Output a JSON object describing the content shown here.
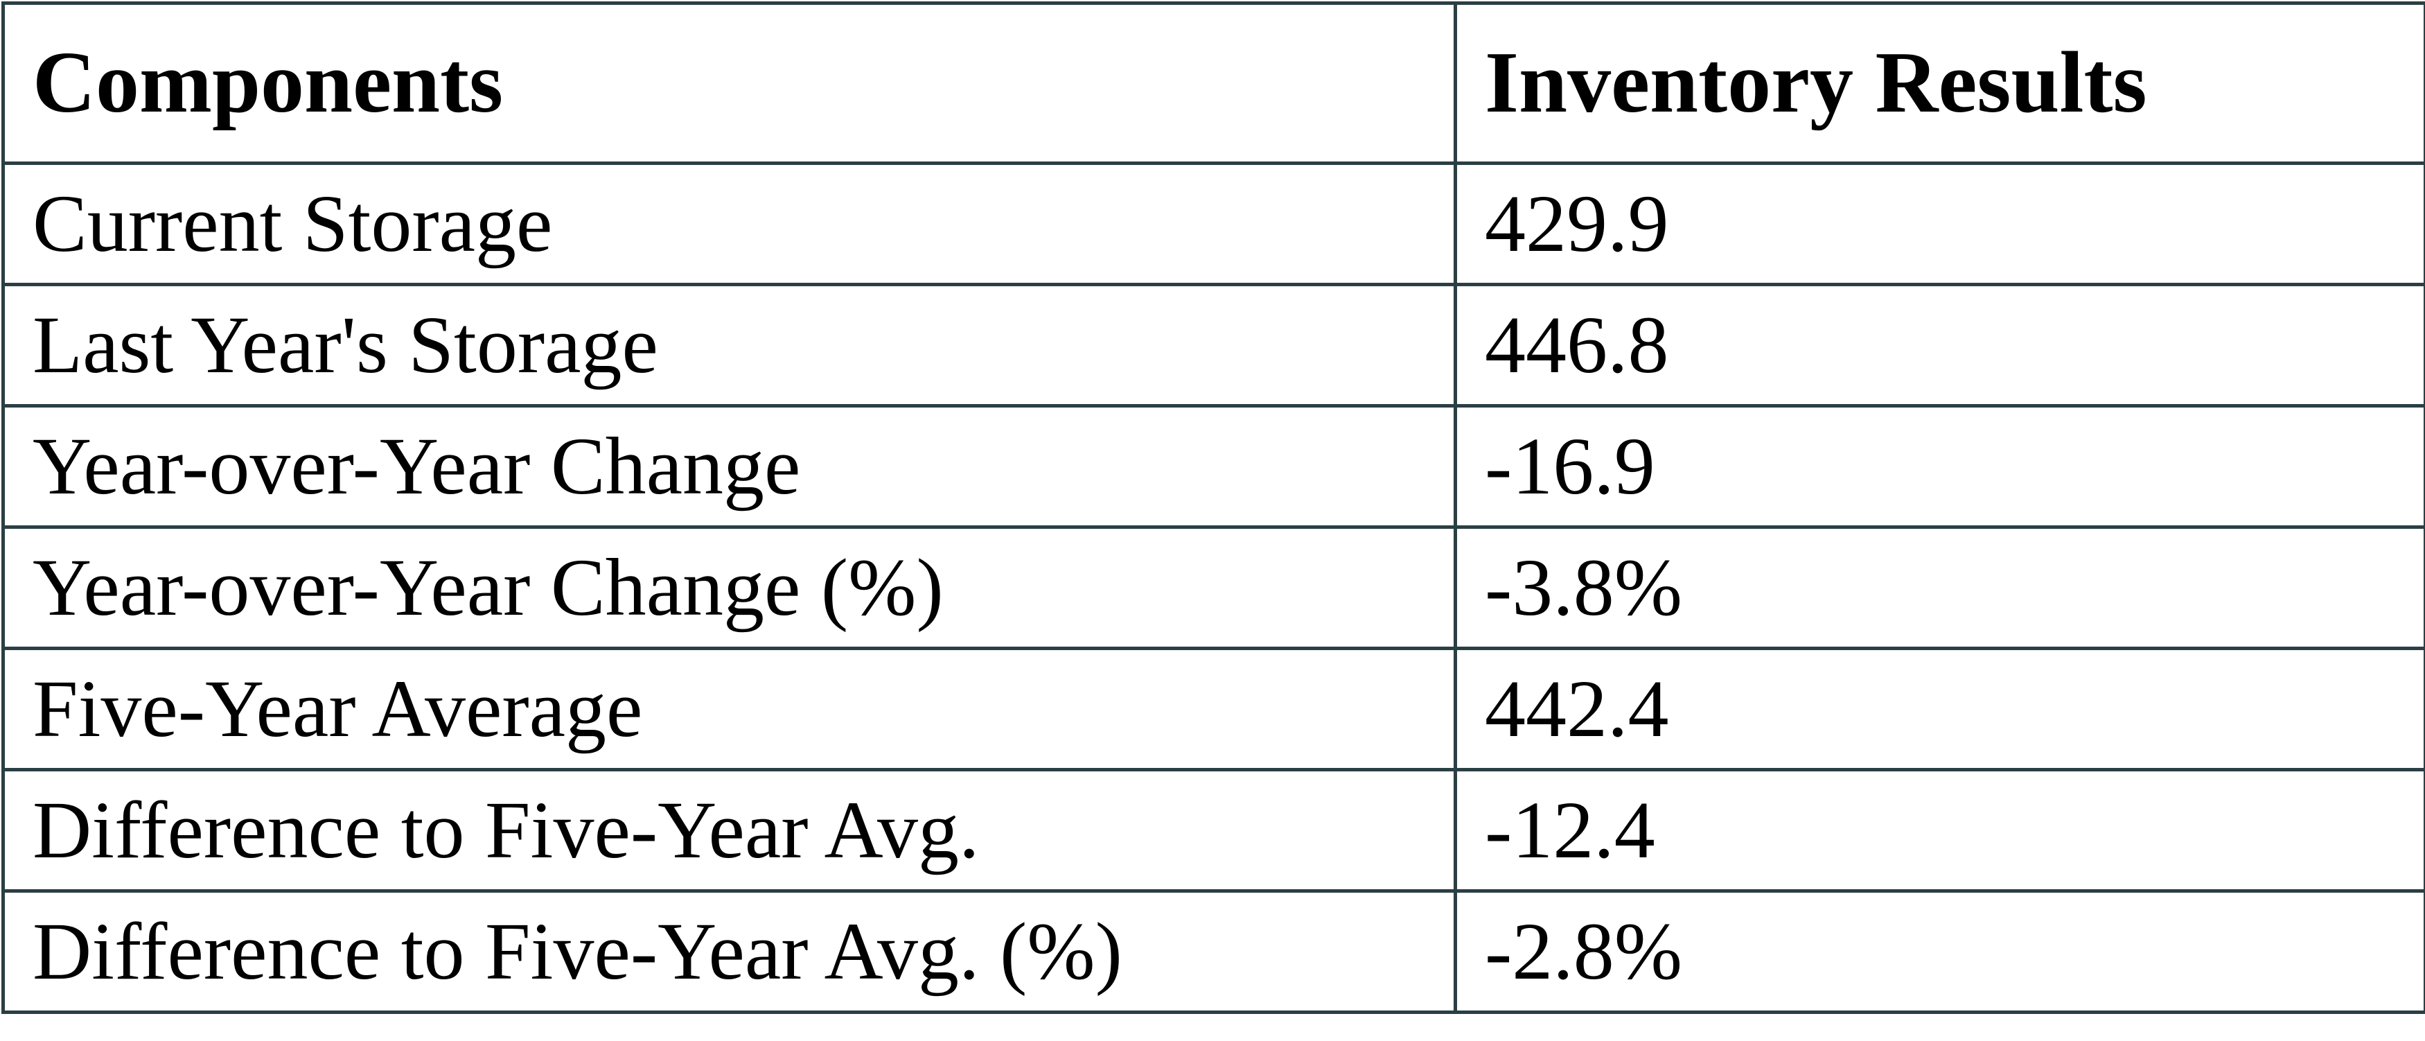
{
  "table": {
    "header": [
      "Components",
      "Inventory Results"
    ],
    "rows": [
      [
        "Current Storage",
        "429.9"
      ],
      [
        "Last Year's Storage",
        "446.8"
      ],
      [
        "Year-over-Year Change",
        "-16.9"
      ],
      [
        "Year-over-Year Change (%)",
        "-3.8%"
      ],
      [
        "Five-Year Average",
        "442.4"
      ],
      [
        "Difference to Five-Year Avg.",
        "-12.4"
      ],
      [
        "Difference to Five-Year Avg. (%)",
        "-2.8%"
      ]
    ]
  }
}
